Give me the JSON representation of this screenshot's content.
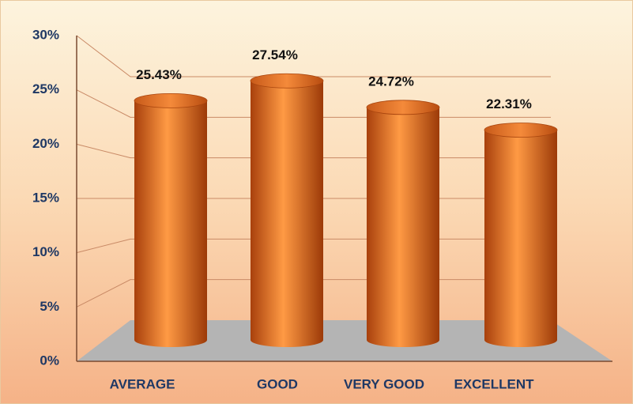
{
  "chart_data": {
    "type": "bar",
    "categories": [
      "AVERAGE",
      "GOOD",
      "VERY GOOD",
      "EXCELLENT"
    ],
    "values": [
      25.43,
      27.54,
      24.72,
      22.31
    ],
    "value_labels": [
      "25.43%",
      "27.54%",
      "24.72%",
      "22.31%"
    ],
    "color": "#e8701e",
    "ylim": [
      0,
      30
    ],
    "yticks": [
      {
        "value": 0,
        "label": "0%"
      },
      {
        "value": 5,
        "label": "5%"
      },
      {
        "value": 10,
        "label": "10%"
      },
      {
        "value": 15,
        "label": "15%"
      },
      {
        "value": 20,
        "label": "20%"
      },
      {
        "value": 25,
        "label": "25%"
      },
      {
        "value": 30,
        "label": "30%"
      }
    ],
    "grid": true
  }
}
